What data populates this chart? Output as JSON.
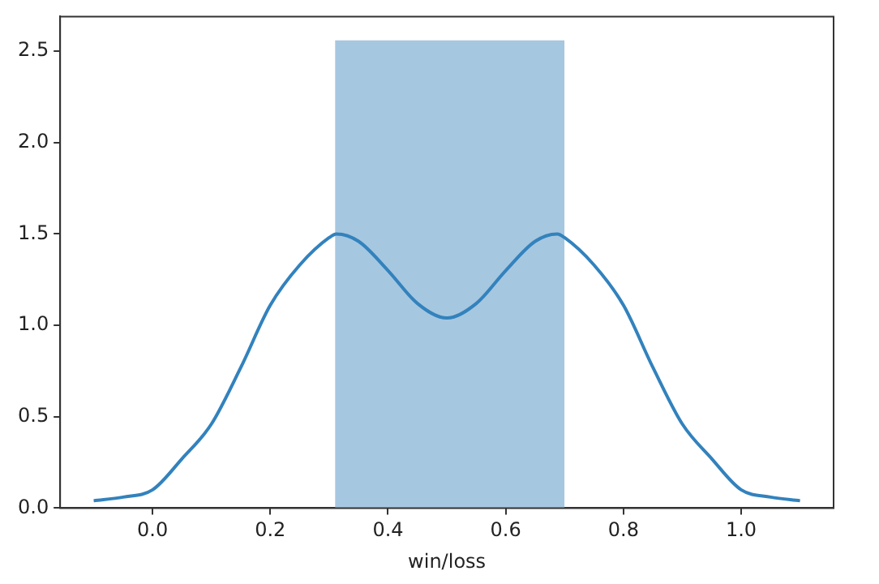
{
  "chart_data": {
    "type": "histogram",
    "xlabel": "win/loss",
    "bins": [
      0.31,
      0.7
    ],
    "values": [
      2.56
    ],
    "color": "#a6c7e0",
    "series": [
      {
        "type": "line",
        "color": "#3282bd",
        "x": [
          -0.1,
          -0.05,
          0,
          0.05,
          0.1,
          0.15,
          0.2,
          0.25,
          0.3,
          0.3125,
          0.35,
          0.4,
          0.45,
          0.5,
          0.55,
          0.6,
          0.65,
          0.6875,
          0.7,
          0.75,
          0.8,
          0.85,
          0.9,
          0.95,
          1.0,
          1.05,
          1.1
        ],
        "values": [
          0.04,
          0.06,
          0.1,
          0.27,
          0.46,
          0.77,
          1.11,
          1.33,
          1.48,
          1.5,
          1.46,
          1.3,
          1.12,
          1.04,
          1.12,
          1.3,
          1.46,
          1.5,
          1.48,
          1.33,
          1.11,
          0.77,
          0.46,
          0.27,
          0.1,
          0.06,
          0.04
        ]
      }
    ],
    "xlim": [
      -0.157,
      1.157
    ],
    "xticks": [
      {
        "value": 0,
        "label": "0.0"
      },
      0.2,
      0.4,
      0.6,
      0.8,
      {
        "value": 1,
        "label": "1.0"
      }
    ],
    "ylim": [
      0,
      2.69
    ],
    "yticks": [
      {
        "value": 0,
        "label": "0.0"
      },
      0.5,
      {
        "value": 1,
        "label": "1.0"
      },
      1.5,
      {
        "value": 2,
        "label": "2.0"
      },
      2.5
    ],
    "grid": false,
    "legend": false
  }
}
